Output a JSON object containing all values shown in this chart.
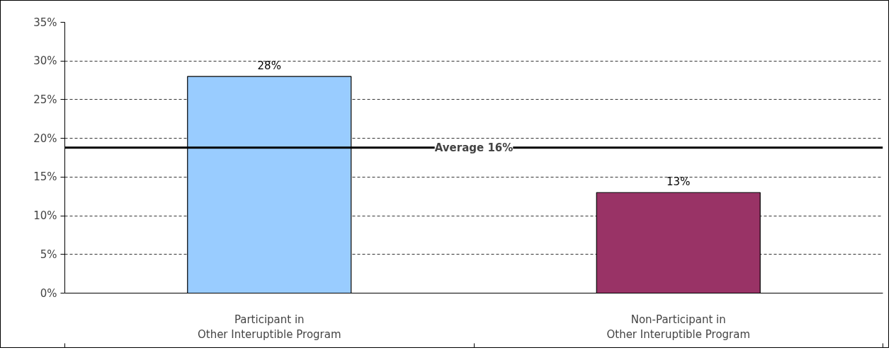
{
  "chart_data": {
    "type": "bar",
    "categories": [
      "Participant in\nOther Interuptible Program",
      "Non-Participant in\nOther Interuptible Program"
    ],
    "colors": [
      "#99ccff",
      "#993366"
    ],
    "values": [
      28,
      13
    ],
    "value_labels": [
      "28%",
      "13%"
    ],
    "ylim": [
      0,
      35
    ],
    "yticks": [
      {
        "value": 0,
        "label": "0%"
      },
      {
        "value": 5,
        "label": "5%"
      },
      {
        "value": 10,
        "label": "10%"
      },
      {
        "value": 15,
        "label": "15%"
      },
      {
        "value": 20,
        "label": "20%"
      },
      {
        "value": 25,
        "label": "25%"
      },
      {
        "value": 30,
        "label": "30%"
      },
      {
        "value": 35,
        "label": "35%"
      }
    ],
    "grid": "y",
    "ref_lines": [
      {
        "axis": "y",
        "value": 18.8,
        "label": "Average 16%",
        "color": "#000000"
      }
    ]
  }
}
